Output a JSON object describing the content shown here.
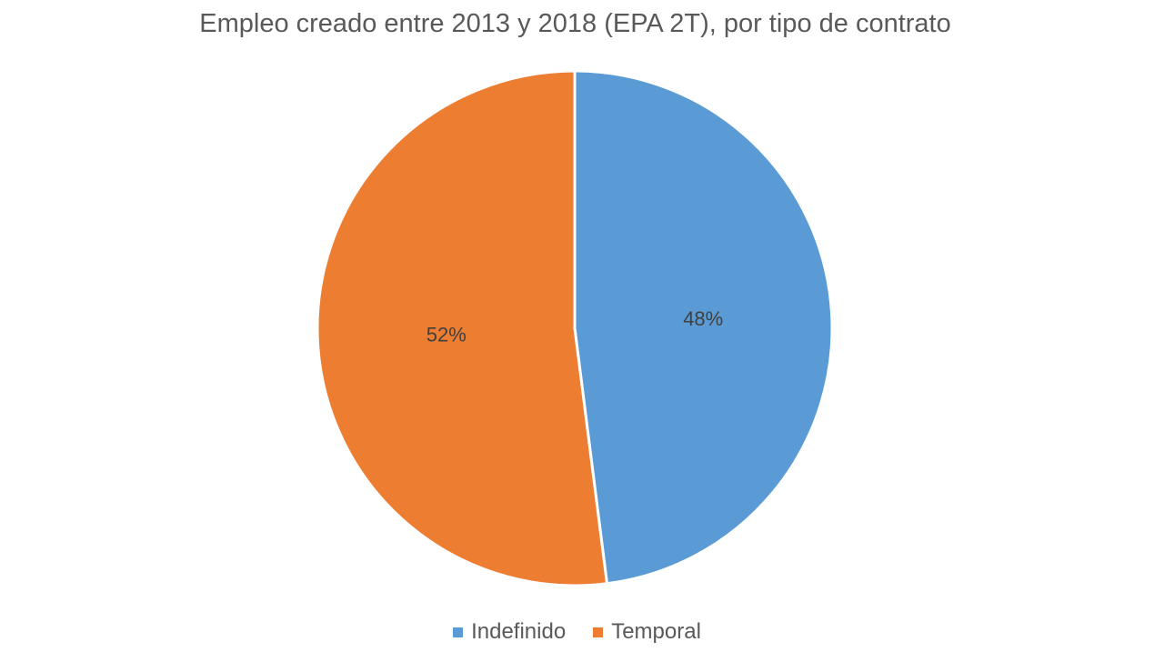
{
  "chart_data": {
    "type": "pie",
    "title": "Empleo creado entre 2013 y 2018 (EPA 2T), por tipo de contrato",
    "slices": [
      {
        "label": "Indefinido",
        "value": 48,
        "display": "48%",
        "color": "#5B9BD5"
      },
      {
        "label": "Temporal",
        "value": 52,
        "display": "52%",
        "color": "#ED7D31"
      }
    ],
    "start_angle_deg": 0,
    "direction": "clockwise",
    "legend_position": "bottom"
  }
}
